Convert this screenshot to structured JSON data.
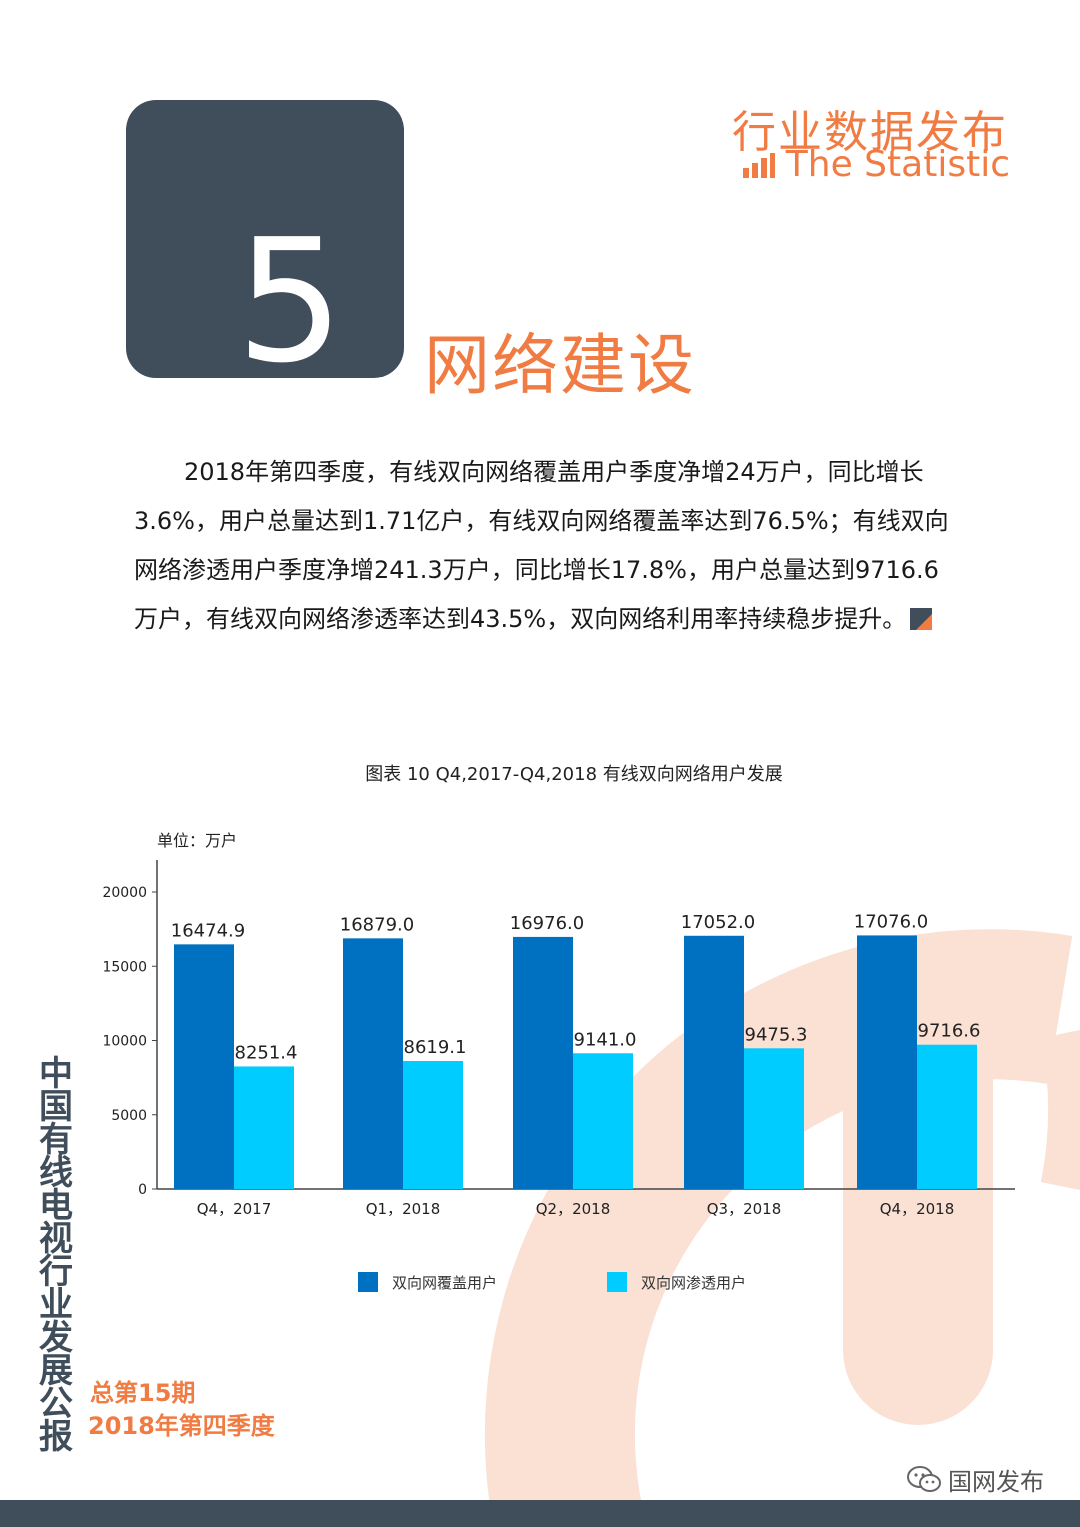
{
  "header": {
    "section_number": "5",
    "section_title": "网络建设",
    "brand_cn": "行业数据发布",
    "brand_en": "The Statistic"
  },
  "body": {
    "paragraph": "2018年第四季度，有线双向网络覆盖用户季度净增24万户，同比增长3.6%，用户总量达到1.71亿户，有线双向网络覆盖率达到76.5%；有线双向网络渗透用户季度净增241.3万户，同比增长17.8%，用户总量达到9716.6万户，有线双向网络渗透率达到43.5%，双向网络利用率持续稳步提升。"
  },
  "chart_caption": "图表 10 Q4,2017-Q4,2018  有线双向网络用户发展",
  "chart_data": {
    "type": "bar",
    "unit_label": "单位：万户",
    "categories": [
      "Q4，2017",
      "Q1，2018",
      "Q2，2018",
      "Q3，2018",
      "Q4，2018"
    ],
    "ylim": [
      0,
      20000
    ],
    "yticks": [
      0,
      5000,
      10000,
      15000,
      20000
    ],
    "series": [
      {
        "name": "双向网覆盖用户",
        "color": "#0070c0",
        "values": [
          16474.9,
          16879.0,
          16976.0,
          17052.0,
          17076.0
        ],
        "labels": [
          "16474.9",
          "16879.0",
          "16976.0",
          "17052.0",
          "17076.0"
        ]
      },
      {
        "name": "双向网渗透用户",
        "color": "#00ccff",
        "values": [
          8251.4,
          8619.1,
          9141.0,
          9475.3,
          9716.6
        ],
        "labels": [
          "8251.4",
          "8619.1",
          "9141.0",
          "9475.3",
          "9716.6"
        ]
      }
    ],
    "legend_position": "bottom",
    "grid": false
  },
  "footer": {
    "vertical_title": "中国有线电视行业发展公报",
    "issue_number": "总第15期",
    "issue_period": "2018年第四季度",
    "watermark": "国网发布"
  },
  "colors": {
    "accent": "#f07c43",
    "dark": "#404e5c",
    "deco": "#fbe0d4"
  },
  "icons": {
    "brand": "bar-chart-icon",
    "end_mark": "corner-mark-icon",
    "watermark": "wechat-icon"
  }
}
